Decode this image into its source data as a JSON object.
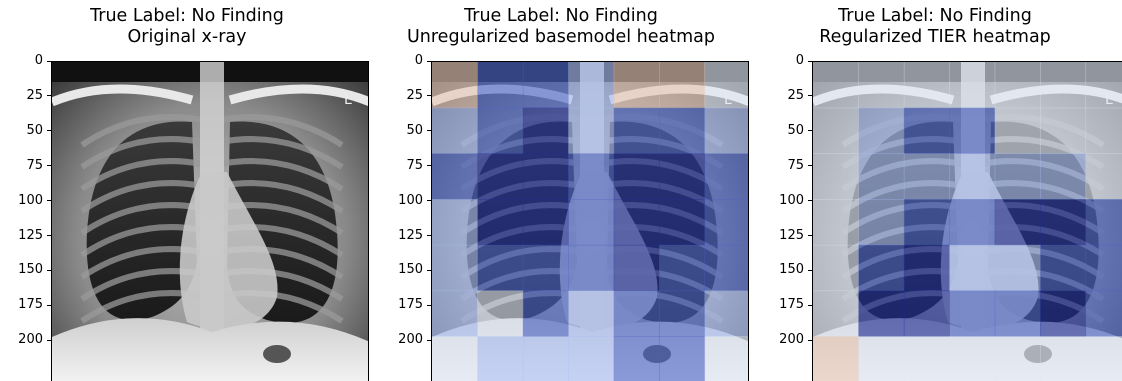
{
  "panels": [
    {
      "title_line1": "True Label: No Finding",
      "title_line2": "Original x-ray"
    },
    {
      "title_line1": "True Label: No Finding",
      "title_line2": "Unregularized basemodel heatmap"
    },
    {
      "title_line1": "True Label: No Finding",
      "title_line2": "Regularized TIER heatmap"
    }
  ],
  "y_ticks": [
    "0",
    "25",
    "50",
    "75",
    "100",
    "125",
    "150",
    "175",
    "200"
  ],
  "image_marker": "L",
  "heatmap_colors": {
    "deep": "#1e2f9a",
    "mid": "#4a63c8",
    "light": "#a9bff5",
    "pale": "#dfe6f5",
    "warm": "#e8c6b4"
  }
}
